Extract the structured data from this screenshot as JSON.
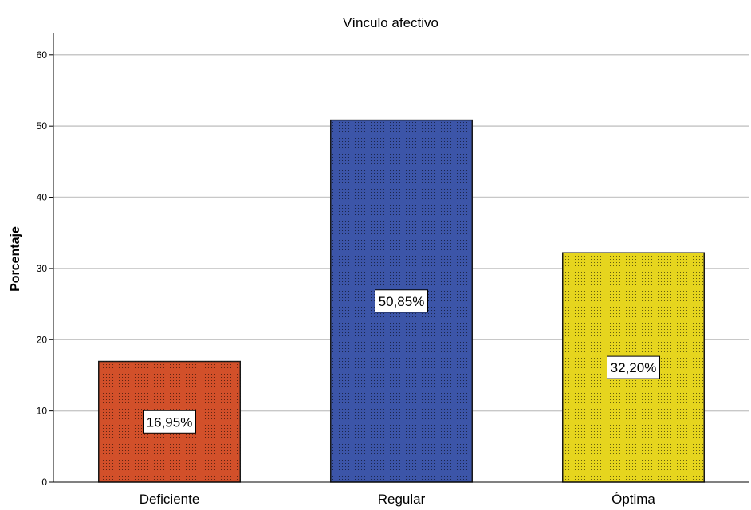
{
  "chart_data": {
    "type": "bar",
    "title": "Vínculo afectivo",
    "xlabel": "",
    "ylabel": "Porcentaje",
    "categories": [
      "Deficiente",
      "Regular",
      "Óptima"
    ],
    "values": [
      16.95,
      50.85,
      32.2
    ],
    "data_labels": [
      "16,95%",
      "50,85%",
      "32,20%"
    ],
    "colors": [
      "#d2502a",
      "#3c55a8",
      "#e6d51e"
    ],
    "ylim": [
      0,
      63
    ],
    "yticks": [
      0,
      10,
      20,
      30,
      40,
      50,
      60
    ],
    "ytick_labels": [
      "0",
      "10",
      "20",
      "30",
      "40",
      "50",
      "60"
    ],
    "grid": true,
    "legend": "none"
  }
}
